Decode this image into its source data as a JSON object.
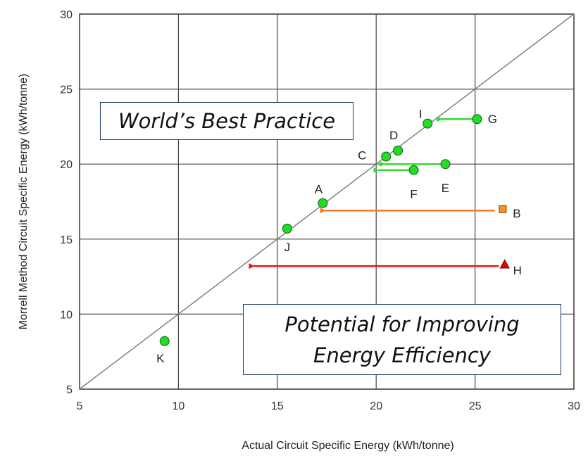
{
  "chart_data": {
    "type": "scatter",
    "xlabel": "Actual Circuit Specific Energy (kWh/tonne)",
    "ylabel": "Morrell Method Circuit Specific Energy (kWh/tonne)",
    "xlim": [
      5,
      30
    ],
    "ylim": [
      5,
      30
    ],
    "xticks": [
      5,
      10,
      15,
      20,
      25,
      30
    ],
    "yticks": [
      5,
      10,
      15,
      20,
      25,
      30
    ],
    "grid": true,
    "reference_line": {
      "from": [
        5,
        5
      ],
      "to": [
        30,
        30
      ],
      "color": "#808080"
    },
    "points": [
      {
        "label": "K",
        "x": 9.3,
        "y": 8.2,
        "marker": "circle",
        "color": "#22dd22"
      },
      {
        "label": "J",
        "x": 15.5,
        "y": 15.7,
        "marker": "circle",
        "color": "#22dd22"
      },
      {
        "label": "A",
        "x": 17.3,
        "y": 17.4,
        "marker": "circle",
        "color": "#22dd22"
      },
      {
        "label": "C",
        "x": 20.5,
        "y": 20.5,
        "marker": "circle",
        "color": "#22dd22"
      },
      {
        "label": "D",
        "x": 21.1,
        "y": 20.9,
        "marker": "circle",
        "color": "#22dd22"
      },
      {
        "label": "F",
        "x": 21.9,
        "y": 19.6,
        "marker": "circle",
        "color": "#22dd22"
      },
      {
        "label": "E",
        "x": 23.5,
        "y": 20.0,
        "marker": "circle",
        "color": "#22dd22"
      },
      {
        "label": "I",
        "x": 22.6,
        "y": 22.7,
        "marker": "circle",
        "color": "#22dd22"
      },
      {
        "label": "G",
        "x": 25.1,
        "y": 23.0,
        "marker": "circle",
        "color": "#22dd22"
      },
      {
        "label": "B",
        "x": 26.4,
        "y": 17.0,
        "marker": "square",
        "color": "#f7941d"
      },
      {
        "label": "H",
        "x": 26.5,
        "y": 13.3,
        "marker": "triangle",
        "color": "#e00000"
      }
    ],
    "arrows": [
      {
        "from": [
          24.9,
          23.0
        ],
        "to": [
          23.1,
          23.0
        ],
        "color": "#33dd33"
      },
      {
        "from": [
          23.2,
          20.0
        ],
        "to": [
          20.2,
          20.0
        ],
        "color": "#33dd33"
      },
      {
        "from": [
          21.7,
          19.6
        ],
        "to": [
          19.9,
          19.6
        ],
        "color": "#33dd33"
      },
      {
        "from": [
          26.0,
          16.9
        ],
        "to": [
          17.2,
          16.9
        ],
        "color": "#f07a2a"
      },
      {
        "from": [
          26.2,
          13.2
        ],
        "to": [
          13.6,
          13.2
        ],
        "color": "#ee1111"
      }
    ],
    "annotations": [
      "World’s Best Practice",
      "Potential for Improving",
      "Energy Efficiency"
    ]
  }
}
